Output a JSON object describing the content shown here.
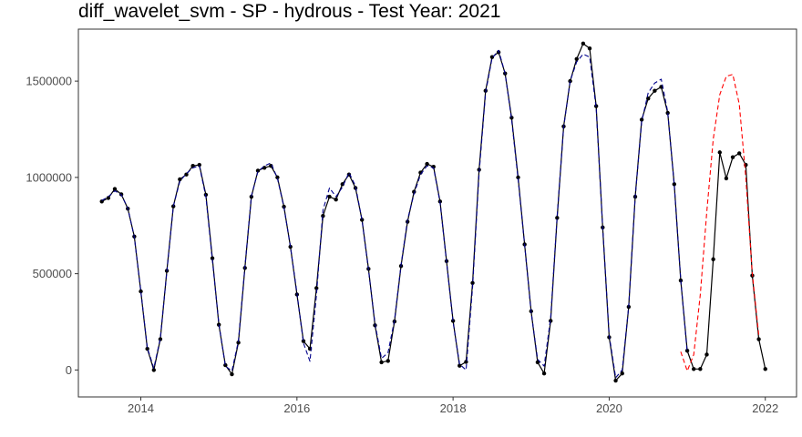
{
  "chart_data": {
    "type": "line",
    "title": "diff_wavelet_svm - SP - hydrous - Test Year: 2021",
    "xlabel": "",
    "ylabel": "",
    "xlim": [
      2013.2,
      2022.4
    ],
    "ylim": [
      -140000,
      1770000
    ],
    "x_ticks": [
      2014,
      2016,
      2018,
      2020,
      2022
    ],
    "x_tick_labels": [
      "2014",
      "2016",
      "2018",
      "2020",
      "2022"
    ],
    "y_ticks": [
      0,
      500000,
      1000000,
      1500000
    ],
    "y_tick_labels": [
      "0",
      "500000",
      "1000000",
      "1500000"
    ],
    "grid": false,
    "legend": "none",
    "series": [
      {
        "style": "solid-with-points",
        "color": "#000000",
        "start": 2013.5,
        "step": 0.08333333,
        "values": [
          875000,
          893000,
          940000,
          912000,
          838000,
          693000,
          408000,
          110000,
          0,
          160000,
          515000,
          850000,
          990000,
          1015000,
          1060000,
          1065000,
          910000,
          580000,
          235000,
          25000,
          -22000,
          142000,
          530000,
          900000,
          1035000,
          1050000,
          1060000,
          1000000,
          848000,
          640000,
          392000,
          150000,
          110000,
          425000,
          800000,
          900000,
          885000,
          965000,
          1015000,
          945000,
          780000,
          525000,
          232000,
          40000,
          47000,
          252000,
          540000,
          770000,
          925000,
          1025000,
          1070000,
          1055000,
          875000,
          565000,
          255000,
          22000,
          42000,
          452000,
          1040000,
          1450000,
          1625000,
          1650000,
          1540000,
          1310000,
          1000000,
          652000,
          305000,
          40000,
          -18000,
          255000,
          790000,
          1265000,
          1500000,
          1615000,
          1695000,
          1670000,
          1370000,
          740000,
          170000,
          -55000,
          -18000,
          328000,
          900000,
          1300000,
          1410000,
          1450000,
          1470000,
          1335000,
          965000,
          465000,
          100000,
          5000,
          5000,
          80000,
          575000,
          1130000,
          995000,
          1105000,
          1125000,
          1065000,
          490000,
          160000,
          5000
        ]
      },
      {
        "style": "dashed",
        "color": "#00008b",
        "start": 2013.5,
        "step": 0.08333333,
        "values": [
          880000,
          900000,
          930000,
          910000,
          840000,
          690000,
          410000,
          115000,
          10000,
          165000,
          510000,
          850000,
          980000,
          1020000,
          1050000,
          1060000,
          900000,
          570000,
          240000,
          20000,
          -5000,
          150000,
          535000,
          905000,
          1030000,
          1060000,
          1075000,
          995000,
          845000,
          640000,
          400000,
          140000,
          45000,
          390000,
          830000,
          945000,
          900000,
          950000,
          1025000,
          955000,
          780000,
          520000,
          240000,
          60000,
          90000,
          260000,
          545000,
          780000,
          915000,
          1015000,
          1060000,
          1050000,
          870000,
          560000,
          250000,
          30000,
          0,
          430000,
          1020000,
          1440000,
          1620000,
          1660000,
          1540000,
          1300000,
          990000,
          650000,
          300000,
          55000,
          20000,
          270000,
          800000,
          1260000,
          1500000,
          1600000,
          1640000,
          1625000,
          1360000,
          740000,
          180000,
          -40000,
          0,
          330000,
          900000,
          1290000,
          1440000,
          1490000,
          1510000,
          1340000,
          960000,
          470000,
          90000
        ]
      },
      {
        "style": "dashed",
        "color": "#ff0000",
        "start": 2020.9167,
        "step": 0.08333333,
        "values": [
          95000,
          -5000,
          80000,
          390000,
          820000,
          1200000,
          1430000,
          1525000,
          1535000,
          1380000,
          1000000,
          500000,
          180000
        ]
      }
    ]
  }
}
